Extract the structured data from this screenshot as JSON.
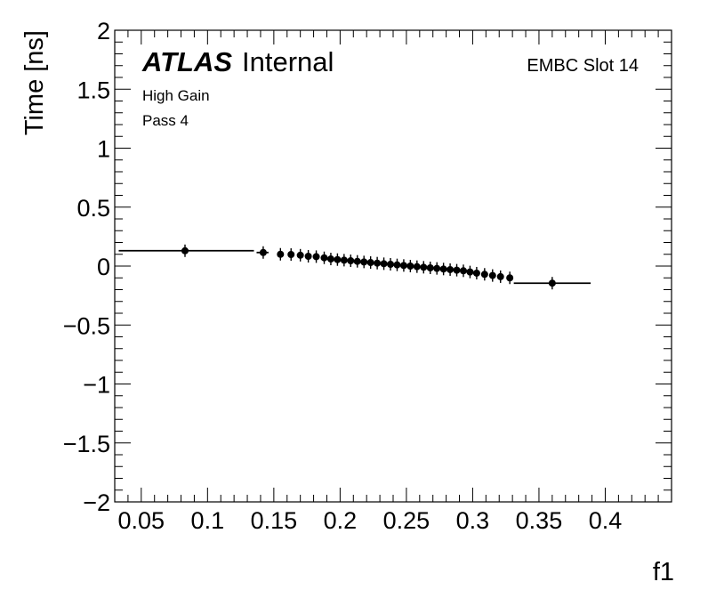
{
  "chart_data": {
    "type": "scatter",
    "title": "",
    "xlabel": "f1",
    "ylabel": "Time [ns]",
    "xlim": [
      0.03,
      0.45
    ],
    "ylim": [
      -2,
      2
    ],
    "x_ticks": [
      "0.05",
      "0.1",
      "0.15",
      "0.2",
      "0.25",
      "0.3",
      "0.35",
      "0.4"
    ],
    "y_ticks": [
      "2",
      "1.5",
      "1",
      "0.5",
      "0",
      "−0.5",
      "−1",
      "−1.5",
      "−2"
    ],
    "x_tick_values": [
      0.05,
      0.1,
      0.15,
      0.2,
      0.25,
      0.3,
      0.35,
      0.4
    ],
    "y_tick_values": [
      2,
      1.5,
      1,
      0.5,
      0,
      -0.5,
      -1,
      -1.5,
      -2
    ],
    "grid": false,
    "annotations": {
      "atlas": "ATLAS",
      "internal": "Internal",
      "gain": "High Gain",
      "pass": "Pass 4",
      "slot": "EMBC Slot 14"
    },
    "series": [
      {
        "points": [
          {
            "x": 0.083,
            "y": 0.13,
            "xerr": [
              0.033,
              0.135
            ]
          },
          {
            "x": 0.142,
            "y": 0.115,
            "xerr": [
              0.137,
              0.146
            ]
          },
          {
            "x": 0.155,
            "y": 0.1
          },
          {
            "x": 0.163,
            "y": 0.098
          },
          {
            "x": 0.17,
            "y": 0.092
          },
          {
            "x": 0.176,
            "y": 0.083
          },
          {
            "x": 0.182,
            "y": 0.08
          },
          {
            "x": 0.188,
            "y": 0.07
          },
          {
            "x": 0.193,
            "y": 0.06
          },
          {
            "x": 0.198,
            "y": 0.055
          },
          {
            "x": 0.203,
            "y": 0.05
          },
          {
            "x": 0.208,
            "y": 0.045
          },
          {
            "x": 0.213,
            "y": 0.04
          },
          {
            "x": 0.218,
            "y": 0.035
          },
          {
            "x": 0.223,
            "y": 0.03
          },
          {
            "x": 0.228,
            "y": 0.025
          },
          {
            "x": 0.233,
            "y": 0.02
          },
          {
            "x": 0.238,
            "y": 0.015
          },
          {
            "x": 0.243,
            "y": 0.01
          },
          {
            "x": 0.248,
            "y": 0.005
          },
          {
            "x": 0.253,
            "y": 0.0
          },
          {
            "x": 0.258,
            "y": -0.005
          },
          {
            "x": 0.263,
            "y": -0.01
          },
          {
            "x": 0.268,
            "y": -0.015
          },
          {
            "x": 0.273,
            "y": -0.02
          },
          {
            "x": 0.278,
            "y": -0.025
          },
          {
            "x": 0.283,
            "y": -0.03
          },
          {
            "x": 0.288,
            "y": -0.035
          },
          {
            "x": 0.293,
            "y": -0.04
          },
          {
            "x": 0.298,
            "y": -0.05
          },
          {
            "x": 0.303,
            "y": -0.06
          },
          {
            "x": 0.309,
            "y": -0.07
          },
          {
            "x": 0.315,
            "y": -0.08
          },
          {
            "x": 0.321,
            "y": -0.09
          },
          {
            "x": 0.328,
            "y": -0.1
          },
          {
            "x": 0.36,
            "y": -0.145,
            "xerr": [
              0.331,
              0.389
            ]
          }
        ]
      }
    ]
  }
}
